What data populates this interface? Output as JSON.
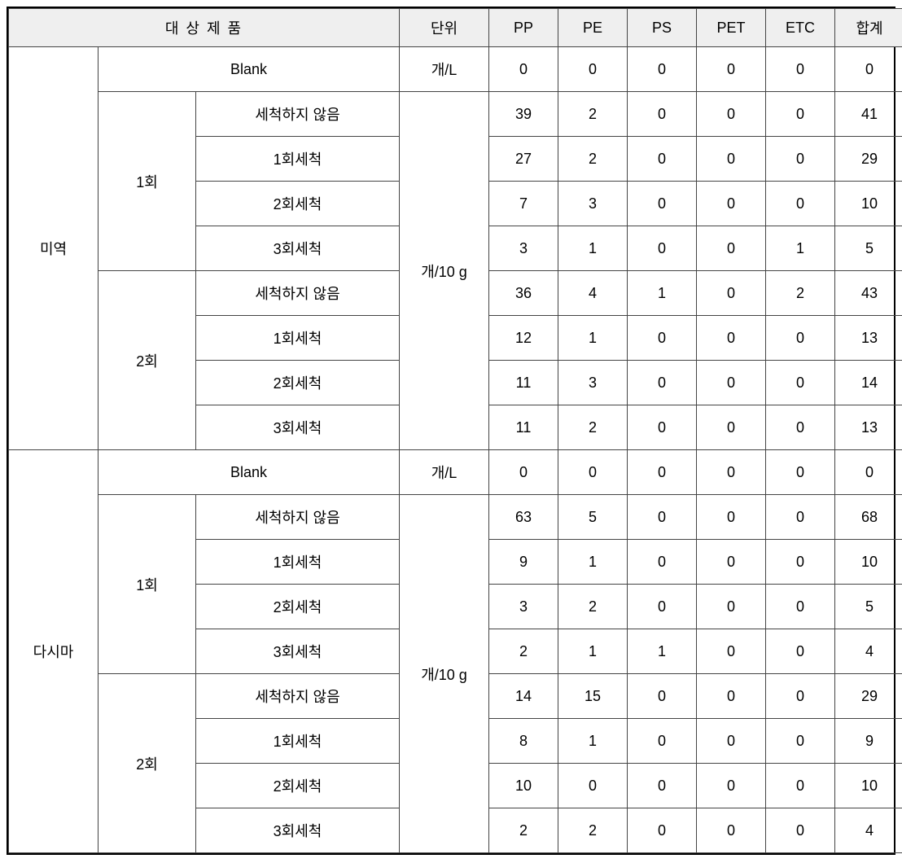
{
  "headers": {
    "product": "대 상 제 품",
    "unit": "단위",
    "pp": "PP",
    "pe": "PE",
    "ps": "PS",
    "pet": "PET",
    "etc": "ETC",
    "total": "합계"
  },
  "unitBlank": "개/L",
  "unitSample": "개/10 g",
  "blankLabel": "Blank",
  "trialLabels": {
    "t1": "1회",
    "t2": "2회"
  },
  "washLabels": {
    "none": "세척하지 않음",
    "w1": "1회세척",
    "w2": "2회세척",
    "w3": "3회세척"
  },
  "products": {
    "miyeok": {
      "name": "미역",
      "blank": {
        "pp": "0",
        "pe": "0",
        "ps": "0",
        "pet": "0",
        "etc": "0",
        "total": "0"
      },
      "t1": {
        "none": {
          "pp": "39",
          "pe": "2",
          "ps": "0",
          "pet": "0",
          "etc": "0",
          "total": "41"
        },
        "w1": {
          "pp": "27",
          "pe": "2",
          "ps": "0",
          "pet": "0",
          "etc": "0",
          "total": "29"
        },
        "w2": {
          "pp": "7",
          "pe": "3",
          "ps": "0",
          "pet": "0",
          "etc": "0",
          "total": "10"
        },
        "w3": {
          "pp": "3",
          "pe": "1",
          "ps": "0",
          "pet": "0",
          "etc": "1",
          "total": "5"
        }
      },
      "t2": {
        "none": {
          "pp": "36",
          "pe": "4",
          "ps": "1",
          "pet": "0",
          "etc": "2",
          "total": "43"
        },
        "w1": {
          "pp": "12",
          "pe": "1",
          "ps": "0",
          "pet": "0",
          "etc": "0",
          "total": "13"
        },
        "w2": {
          "pp": "11",
          "pe": "3",
          "ps": "0",
          "pet": "0",
          "etc": "0",
          "total": "14"
        },
        "w3": {
          "pp": "11",
          "pe": "2",
          "ps": "0",
          "pet": "0",
          "etc": "0",
          "total": "13"
        }
      }
    },
    "dasima": {
      "name": "다시마",
      "blank": {
        "pp": "0",
        "pe": "0",
        "ps": "0",
        "pet": "0",
        "etc": "0",
        "total": "0"
      },
      "t1": {
        "none": {
          "pp": "63",
          "pe": "5",
          "ps": "0",
          "pet": "0",
          "etc": "0",
          "total": "68"
        },
        "w1": {
          "pp": "9",
          "pe": "1",
          "ps": "0",
          "pet": "0",
          "etc": "0",
          "total": "10"
        },
        "w2": {
          "pp": "3",
          "pe": "2",
          "ps": "0",
          "pet": "0",
          "etc": "0",
          "total": "5"
        },
        "w3": {
          "pp": "2",
          "pe": "1",
          "ps": "1",
          "pet": "0",
          "etc": "0",
          "total": "4"
        }
      },
      "t2": {
        "none": {
          "pp": "14",
          "pe": "15",
          "ps": "0",
          "pet": "0",
          "etc": "0",
          "total": "29"
        },
        "w1": {
          "pp": "8",
          "pe": "1",
          "ps": "0",
          "pet": "0",
          "etc": "0",
          "total": "9"
        },
        "w2": {
          "pp": "10",
          "pe": "0",
          "ps": "0",
          "pet": "0",
          "etc": "0",
          "total": "10"
        },
        "w3": {
          "pp": "2",
          "pe": "2",
          "ps": "0",
          "pet": "0",
          "etc": "0",
          "total": "4"
        }
      }
    }
  }
}
